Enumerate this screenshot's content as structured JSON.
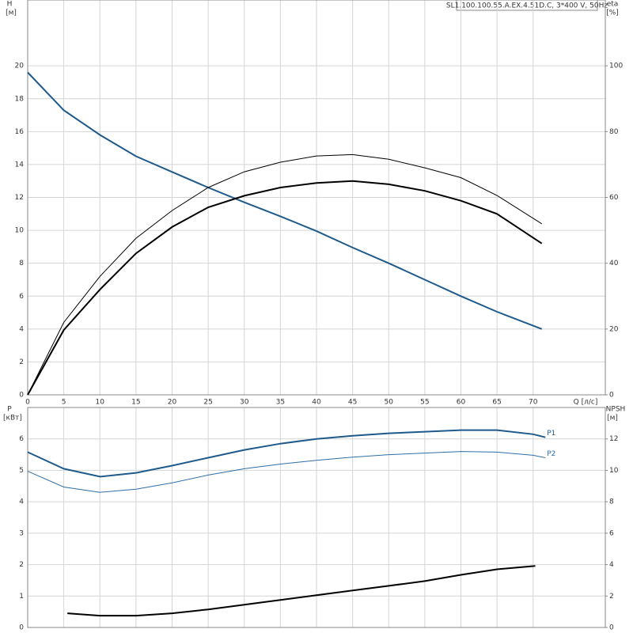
{
  "chart_data": [
    {
      "type": "line",
      "title": "SL1.100.100.55.A.EX.4.51D.C, 3*400 V, 50Hz",
      "y_label": "H",
      "y_unit": "[м]",
      "y2_label": "eta",
      "y2_unit": "[%]",
      "x_label": "Q [л/с]",
      "xlim": [
        0,
        80
      ],
      "xticks": [
        0,
        5,
        10,
        15,
        20,
        25,
        30,
        35,
        40,
        45,
        50,
        55,
        60,
        65,
        70
      ],
      "ylim": [
        0,
        24
      ],
      "yticks": [
        0,
        2,
        4,
        6,
        8,
        10,
        12,
        14,
        16,
        18,
        20
      ],
      "y2lim": [
        0,
        120
      ],
      "y2ticks": [
        0,
        20,
        40,
        60,
        80,
        100
      ],
      "grid": true,
      "series": [
        {
          "color": "#1f5a8c",
          "width": 2,
          "x": [
            0,
            5,
            10,
            15,
            20,
            25,
            30,
            35,
            40,
            45,
            50,
            55,
            60,
            65,
            71.2
          ],
          "values": [
            19.6,
            17.3,
            15.8,
            14.5,
            13.55,
            12.6,
            11.7,
            10.85,
            9.95,
            8.95,
            8.0,
            7.0,
            6.0,
            5.05,
            4.0
          ]
        },
        {
          "color": "#000000",
          "width": 2,
          "axis": "y2",
          "x": [
            0,
            5,
            10,
            15,
            20,
            25,
            30,
            35,
            40,
            45,
            50,
            55,
            60,
            65,
            71.2
          ],
          "values": [
            0,
            19.7,
            32,
            43,
            51,
            57,
            60.5,
            63,
            64.4,
            65,
            64,
            62,
            59,
            55,
            46
          ]
        },
        {
          "color": "#000000",
          "width": 1,
          "axis": "y2",
          "x": [
            0,
            5,
            10,
            15,
            20,
            25,
            30,
            35,
            40,
            45,
            50,
            55,
            60,
            65,
            71.2
          ],
          "values": [
            0,
            22,
            36,
            47.6,
            56,
            63,
            67.8,
            70.7,
            72.6,
            73,
            71.6,
            69,
            66,
            60.6,
            52
          ]
        }
      ]
    },
    {
      "type": "line",
      "y_label": "P",
      "y_unit": "[кВт]",
      "y2_label": "NPSH",
      "y2_unit": "[м]",
      "xlim": [
        0,
        80
      ],
      "ylim": [
        0,
        7
      ],
      "yticks": [
        0,
        1,
        2,
        3,
        4,
        5,
        6
      ],
      "y2lim": [
        0,
        14
      ],
      "y2ticks": [
        0,
        2,
        4,
        6,
        8,
        10,
        12
      ],
      "grid": true,
      "series": [
        {
          "name": "P1",
          "color": "#1f5a8c",
          "width": 2,
          "x": [
            0,
            5,
            10,
            15,
            20,
            25,
            30,
            35,
            40,
            45,
            50,
            55,
            60,
            65,
            70,
            71.7
          ],
          "values": [
            5.58,
            5.05,
            4.8,
            4.92,
            5.15,
            5.4,
            5.65,
            5.85,
            6.0,
            6.1,
            6.18,
            6.23,
            6.28,
            6.28,
            6.15,
            6.05
          ]
        },
        {
          "name": "P2",
          "color": "#2e6fa8",
          "width": 1,
          "x": [
            0,
            5,
            10,
            15,
            20,
            25,
            30,
            35,
            40,
            45,
            50,
            55,
            60,
            65,
            70,
            71.7
          ],
          "values": [
            4.97,
            4.47,
            4.3,
            4.4,
            4.6,
            4.85,
            5.05,
            5.2,
            5.32,
            5.42,
            5.5,
            5.55,
            5.6,
            5.58,
            5.48,
            5.4
          ]
        },
        {
          "color": "#000000",
          "width": 2,
          "axis": "y2",
          "x": [
            5.5,
            10,
            15,
            20,
            25,
            30,
            35,
            40,
            45,
            50,
            55,
            60,
            65,
            70.3
          ],
          "values": [
            0.9,
            0.75,
            0.75,
            0.9,
            1.15,
            1.45,
            1.75,
            2.05,
            2.35,
            2.65,
            2.95,
            3.35,
            3.7,
            3.92
          ]
        }
      ]
    }
  ]
}
